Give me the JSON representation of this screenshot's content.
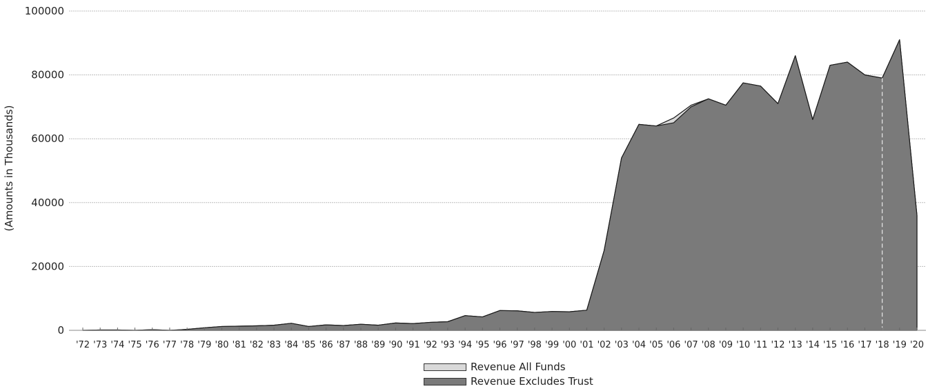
{
  "chart_data": {
    "type": "area",
    "title": "",
    "xlabel": "",
    "ylabel": "(Amounts in Thousands)",
    "ylim": [
      0,
      100000
    ],
    "yticks": [
      "0",
      "20000",
      "40000",
      "60000",
      "80000",
      "100000"
    ],
    "grid": true,
    "legend_position": "bottom-center",
    "categories": [
      "'72",
      "'73",
      "'74",
      "'75",
      "'76",
      "'77",
      "'78",
      "'79",
      "'80",
      "'81",
      "'82",
      "'83",
      "'84",
      "'85",
      "'86",
      "'87",
      "'88",
      "'89",
      "'90",
      "'91",
      "'92",
      "'93",
      "'94",
      "'95",
      "'96",
      "'97",
      "'98",
      "'99",
      "'00",
      "'01",
      "'02",
      "'03",
      "'04",
      "'05",
      "'06",
      "'07",
      "'08",
      "'09",
      "'10",
      "'11",
      "'12",
      "'13",
      "'14",
      "'15",
      "'16",
      "'17",
      "'18",
      "'19",
      "'20"
    ],
    "series": [
      {
        "name": "Revenue All Funds",
        "color": "#d9d9d9",
        "values": [
          0,
          100,
          100,
          0,
          200,
          0,
          300,
          800,
          1200,
          1300,
          1400,
          1600,
          2200,
          1200,
          1700,
          1500,
          1900,
          1600,
          2300,
          2100,
          2500,
          2700,
          4600,
          4200,
          6200,
          6100,
          5600,
          5900,
          5800,
          6300,
          25000,
          54000,
          64500,
          64000,
          66500,
          70500,
          72500,
          70500,
          77500,
          76500,
          71000,
          86000,
          66000,
          83000,
          84000,
          80000,
          79000,
          91000,
          36000
        ]
      },
      {
        "name": "Revenue Excludes Trust",
        "color": "#7a7a7a",
        "values": [
          0,
          100,
          100,
          0,
          200,
          0,
          300,
          800,
          1200,
          1300,
          1400,
          1600,
          2200,
          1200,
          1700,
          1500,
          1900,
          1600,
          2300,
          2100,
          2500,
          2700,
          4600,
          4200,
          6200,
          6100,
          5600,
          5900,
          5800,
          6300,
          25000,
          54000,
          64500,
          64000,
          65000,
          70000,
          72500,
          70500,
          77500,
          76500,
          71000,
          86000,
          66000,
          83000,
          84000,
          80000,
          79000,
          91000,
          36000
        ]
      }
    ]
  }
}
